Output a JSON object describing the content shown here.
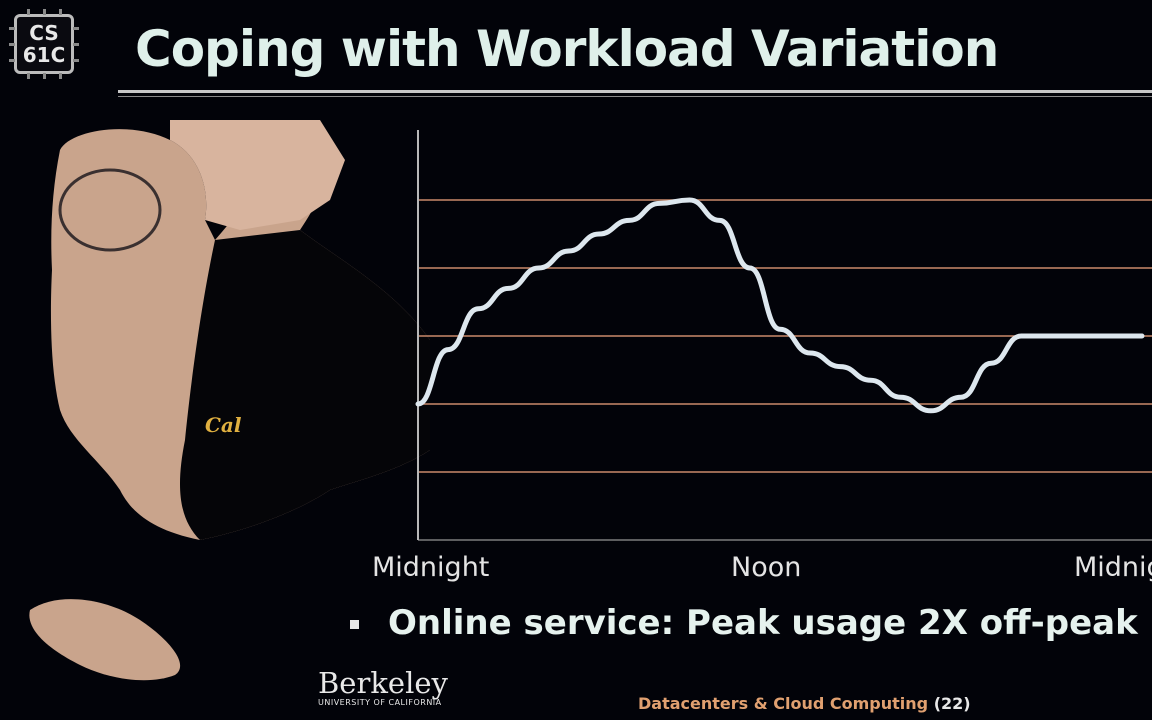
{
  "slide": {
    "logo": {
      "line1": "CS",
      "line2": "61C"
    },
    "title": "Coping with Workload Variation",
    "bullet": "Online service: Peak usage 2X off-peak",
    "footer": {
      "berkeley": "Berkeley",
      "berkeley_sub": "UNIVERSITY OF CALIFORNIA",
      "course": "Datacenters & Cloud Computing",
      "page": "(22)"
    },
    "presenter_shirt_logo": "Cal"
  },
  "colors": {
    "background": "#020309",
    "title": "#dff0ea",
    "gridline": "#c98a6a",
    "curve": "#dde7ee",
    "footer_accent": "#e0a070"
  },
  "chart_data": {
    "type": "line",
    "title": "",
    "xlabel": "",
    "ylabel": "",
    "x_tick_labels": [
      "Midnight",
      "Noon",
      "Midnigh"
    ],
    "xlim": [
      0,
      24
    ],
    "ylim": [
      0,
      6
    ],
    "gridlines_y": [
      1,
      2,
      3,
      4,
      5
    ],
    "grid": true,
    "series": [
      {
        "x": [
          0,
          1,
          2,
          3,
          4,
          5,
          6,
          7,
          8,
          9,
          10,
          11,
          12,
          13,
          14,
          15,
          16,
          17,
          18,
          19,
          20,
          21,
          22,
          23,
          24
        ],
        "y": [
          2.0,
          2.8,
          3.4,
          3.7,
          4.0,
          4.25,
          4.5,
          4.7,
          4.95,
          5.0,
          4.7,
          4.0,
          3.1,
          2.75,
          2.55,
          2.35,
          2.1,
          1.9,
          2.1,
          2.6,
          3.0,
          3.0,
          3.0,
          3.0,
          3.0
        ]
      }
    ]
  }
}
